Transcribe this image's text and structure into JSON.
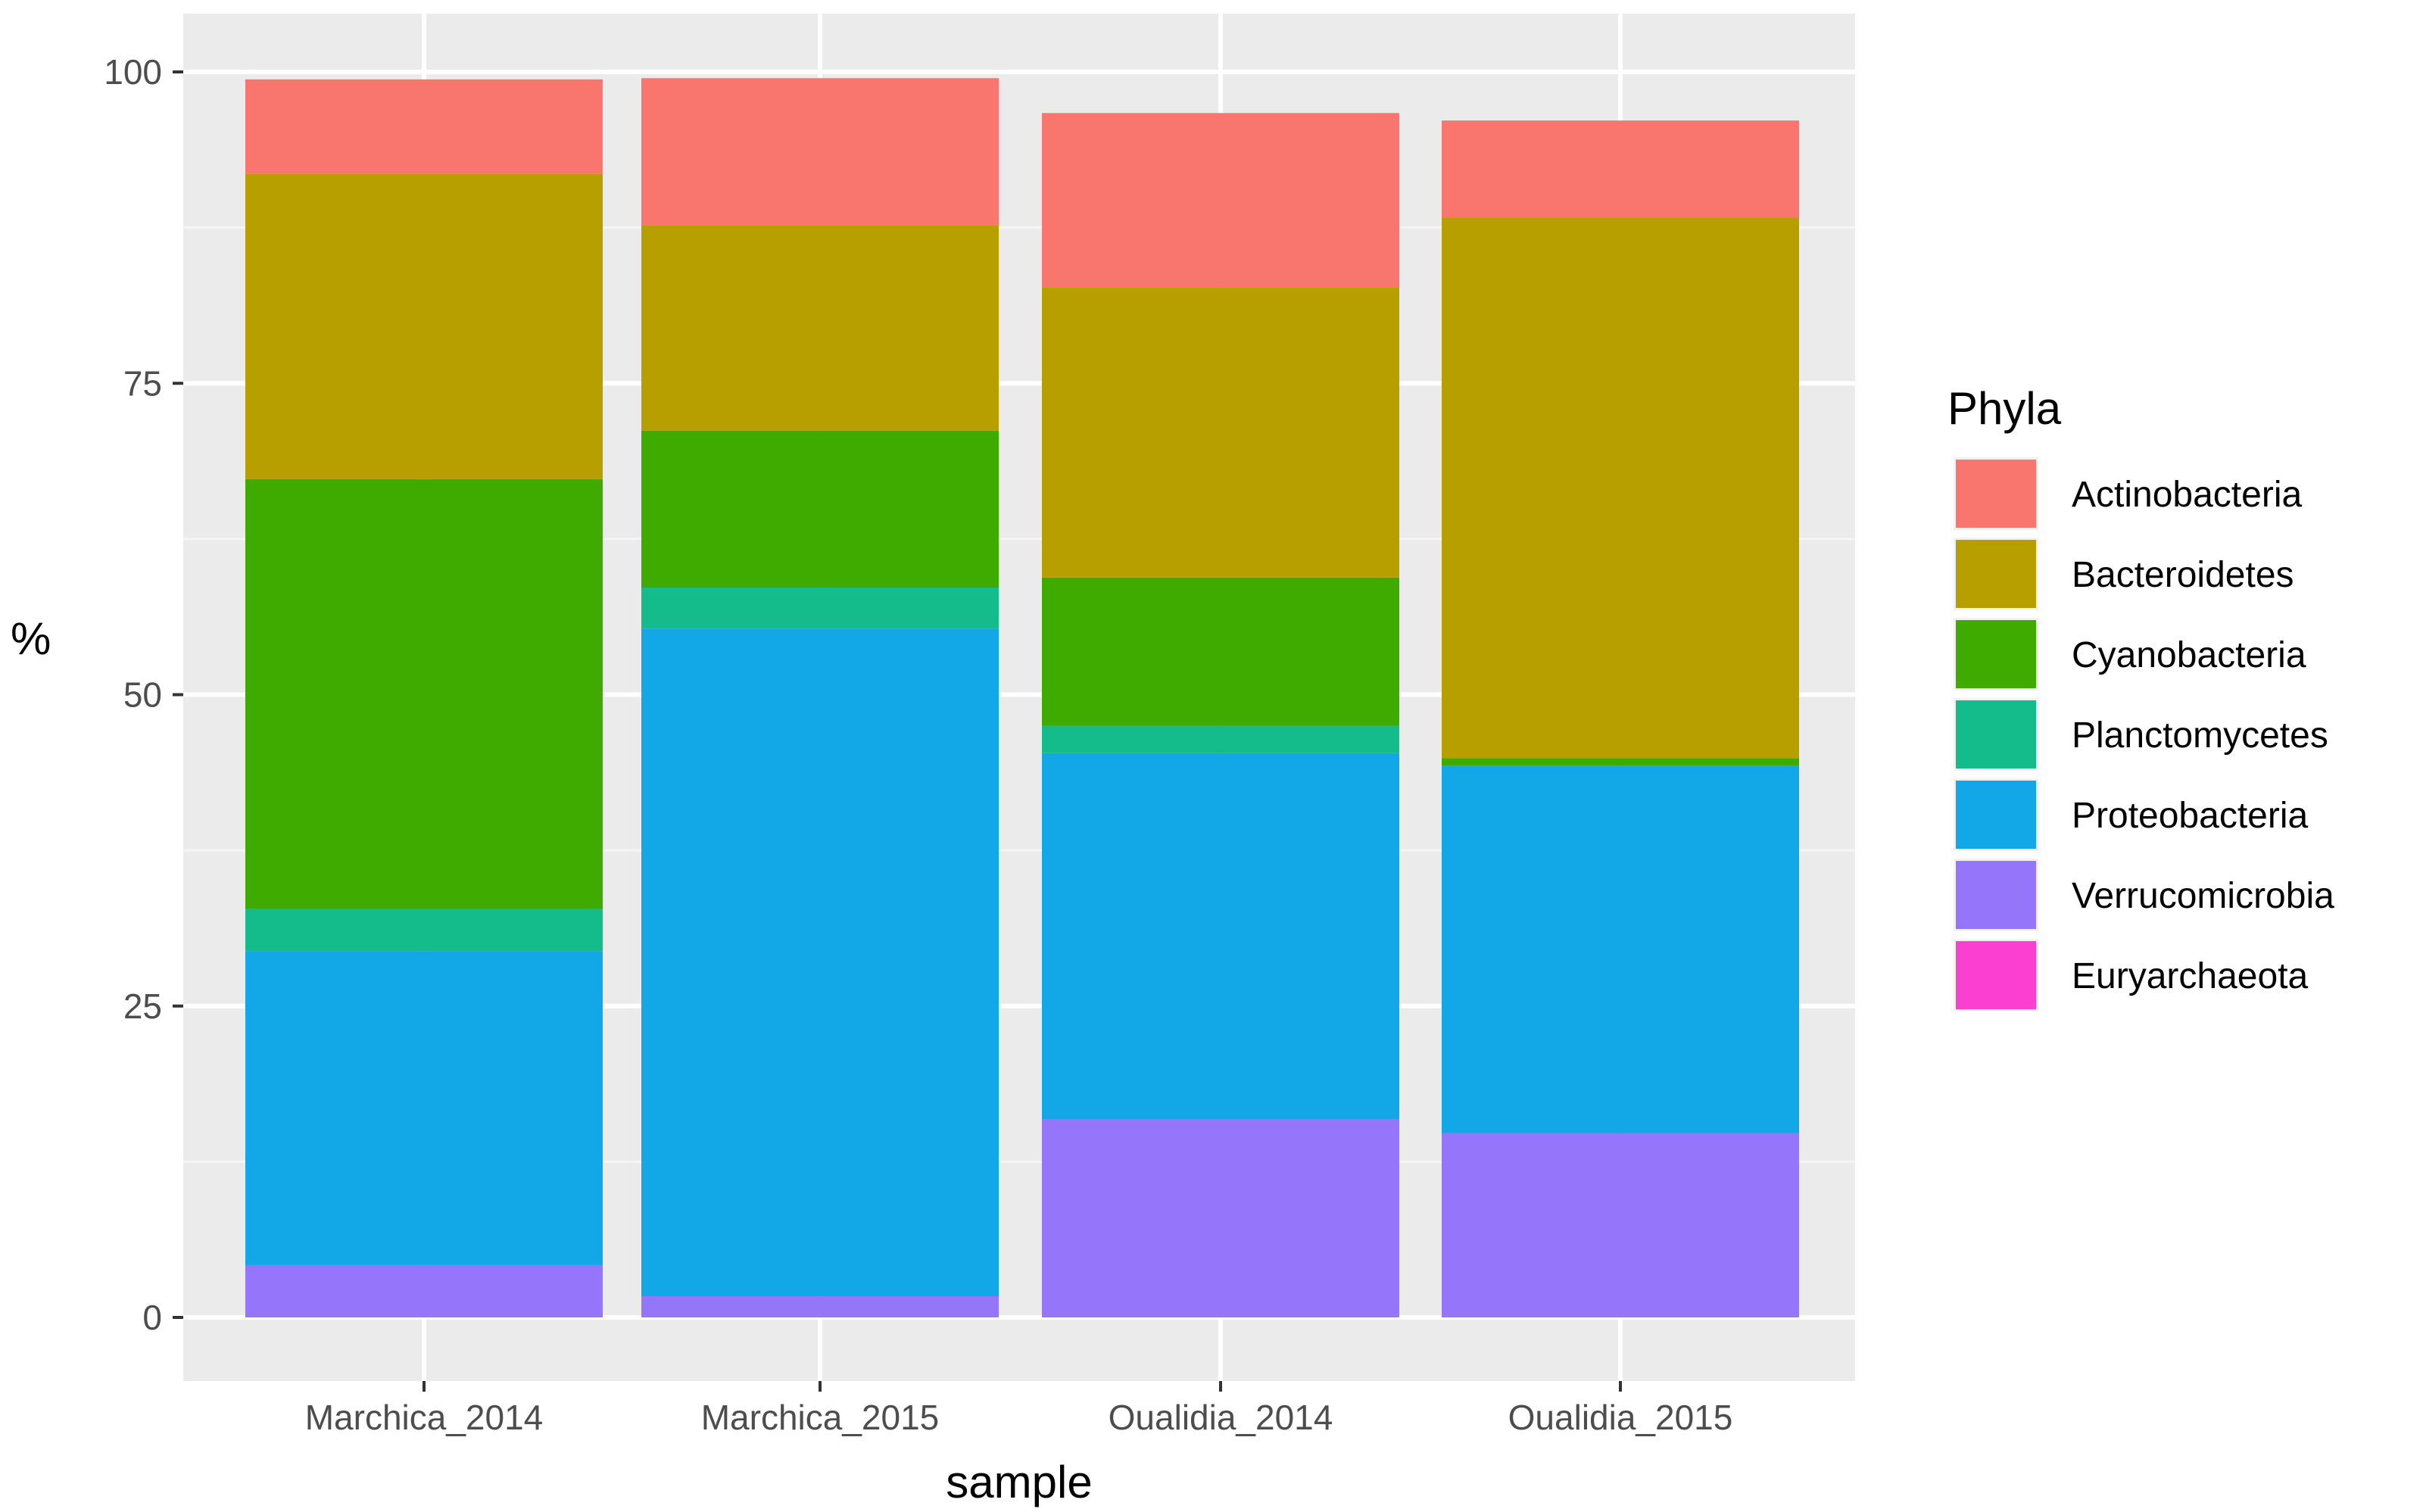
{
  "chart_data": {
    "type": "bar",
    "stacked": true,
    "xlabel": "sample",
    "ylabel": "%",
    "ylim": [
      0,
      100
    ],
    "yticks": [
      0,
      25,
      50,
      75,
      100
    ],
    "categories": [
      "Marchica_2014",
      "Marchica_2015",
      "Oualidia_2014",
      "Oualidia_2015"
    ],
    "legend": {
      "title": "Phyla",
      "position": "right"
    },
    "series": [
      {
        "name": "Actinobacteria",
        "color": "#F8766D",
        "values": [
          7.6,
          11.8,
          14.0,
          7.8
        ]
      },
      {
        "name": "Bacteroidetes",
        "color": "#B79F00",
        "values": [
          24.5,
          16.5,
          23.3,
          43.4
        ]
      },
      {
        "name": "Cyanobacteria",
        "color": "#3FAA00",
        "values": [
          34.5,
          12.6,
          11.9,
          0.6
        ]
      },
      {
        "name": "Planctomycetes",
        "color": "#14BB8B",
        "values": [
          3.4,
          3.3,
          2.2,
          0.0
        ]
      },
      {
        "name": "Proteobacteria",
        "color": "#12A8E8",
        "values": [
          25.2,
          53.6,
          29.4,
          29.5
        ]
      },
      {
        "name": "Verrucomicrobia",
        "color": "#9575FA",
        "values": [
          4.2,
          1.7,
          15.9,
          14.8
        ]
      },
      {
        "name": "Euryarchaeota",
        "color": "#FB3FD1",
        "values": [
          0,
          0,
          0,
          0
        ]
      }
    ]
  }
}
